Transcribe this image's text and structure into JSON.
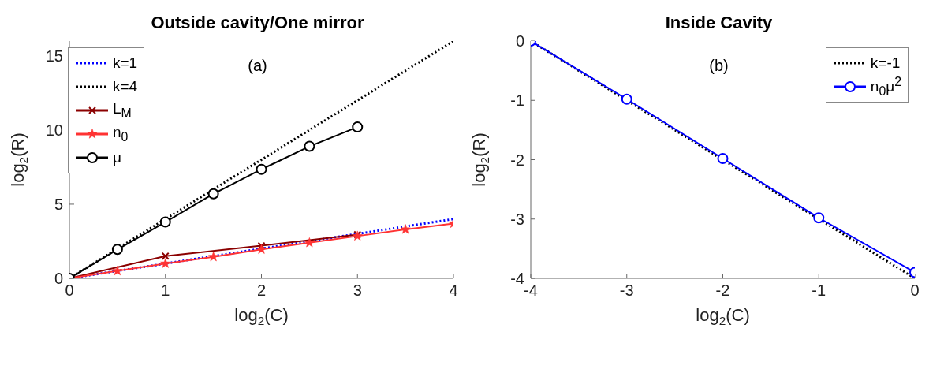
{
  "chart_data": [
    {
      "type": "line",
      "title": "Outside cavity/One mirror",
      "xlabel": "log$_{2}$(C)",
      "ylabel": "log$_{2}$(R)",
      "annotations": [
        "(a)"
      ],
      "xlim": [
        0,
        4
      ],
      "ylim": [
        0,
        16
      ],
      "xticks": [
        0,
        1,
        2,
        3,
        4
      ],
      "yticks": [
        0,
        5,
        10,
        15
      ],
      "grid": false,
      "legend": "top left",
      "series": [
        {
          "name": "k=1",
          "color": "#0000ff",
          "x": [
            0,
            4
          ],
          "values": [
            0,
            4
          ],
          "marker": "none",
          "line_style": "dotted"
        },
        {
          "name": "k=4",
          "color": "#000000",
          "x": [
            0,
            4
          ],
          "values": [
            0,
            16
          ],
          "line_style": "dotted"
        },
        {
          "name": "L$_{M}$",
          "color": "#8b0000",
          "x": [
            0,
            1,
            2,
            3
          ],
          "values": [
            0,
            1.5,
            2.2,
            2.95
          ],
          "marker": "cross",
          "line_style": "solid"
        },
        {
          "name": "n$_{0}$",
          "color": "#ff3333",
          "x": [
            0,
            0.5,
            1,
            1.5,
            2,
            2.5,
            3,
            3.5,
            4
          ],
          "values": [
            0,
            0.5,
            1.0,
            1.45,
            1.95,
            2.4,
            2.85,
            3.3,
            3.7
          ],
          "marker": "star",
          "line_style": "solid"
        },
        {
          "name": "μ",
          "color": "#000000",
          "x": [
            0,
            0.5,
            1,
            1.5,
            2,
            2.5,
            3
          ],
          "values": [
            0,
            1.95,
            3.8,
            5.7,
            7.35,
            8.9,
            10.2
          ],
          "marker": "circle",
          "line_style": "solid"
        }
      ]
    },
    {
      "type": "line",
      "title": "Inside Cavity",
      "xlabel": "log$_{2}$(C)",
      "ylabel": "log$_{2}$(R)",
      "annotations": [
        "(b)"
      ],
      "xlim": [
        -4,
        0
      ],
      "ylim": [
        -4,
        0
      ],
      "xticks": [
        -4,
        -3,
        -2,
        -1,
        0
      ],
      "yticks": [
        -4,
        -3,
        -2,
        -1,
        0
      ],
      "grid": false,
      "legend": "top right",
      "series": [
        {
          "name": "k=-1",
          "color": "#000000",
          "x": [
            -4,
            0
          ],
          "values": [
            0,
            -4
          ],
          "marker": "none",
          "line_style": "dotted"
        },
        {
          "name": "n$_{0}$μ$^{2}$",
          "color": "#0000ff",
          "x": [
            -4,
            -3,
            -2,
            -1,
            0
          ],
          "values": [
            0,
            -0.98,
            -1.98,
            -2.98,
            -3.9
          ],
          "marker": "circle",
          "line_style": "solid"
        }
      ]
    }
  ]
}
